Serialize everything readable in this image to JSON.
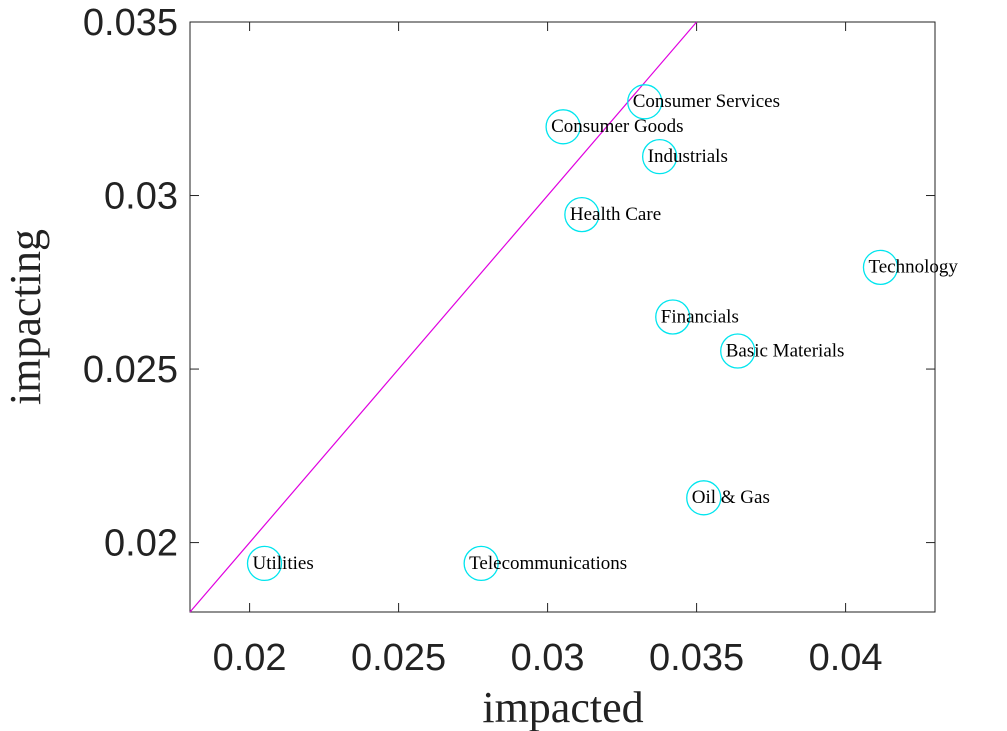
{
  "chart_data": {
    "type": "scatter",
    "xlabel": "impacted",
    "ylabel": "impacting",
    "labels": [
      "Consumer Services",
      "Consumer Goods",
      "Industrials",
      "Health Care",
      "Technology",
      "Financials",
      "Basic Materials",
      "Oil & Gas",
      "Utilities",
      "Telecommunications"
    ],
    "x": [
      0.03326,
      0.03052,
      0.03376,
      0.03115,
      0.04117,
      0.0342,
      0.03638,
      0.03524,
      0.0205,
      0.02777
    ],
    "y": [
      0.0327,
      0.03198,
      0.03112,
      0.02945,
      0.02793,
      0.0265,
      0.02552,
      0.02129,
      0.0194,
      0.0194
    ],
    "color": "#00e5ee",
    "line_color": "#e000e0",
    "diagonal": true,
    "xlim": [
      0.018,
      0.043
    ],
    "ylim": [
      0.018,
      0.035
    ],
    "xticks": [
      0.02,
      0.025,
      0.03,
      0.035,
      0.04
    ],
    "yticks": [
      0.02,
      0.025,
      0.03,
      0.035
    ]
  }
}
